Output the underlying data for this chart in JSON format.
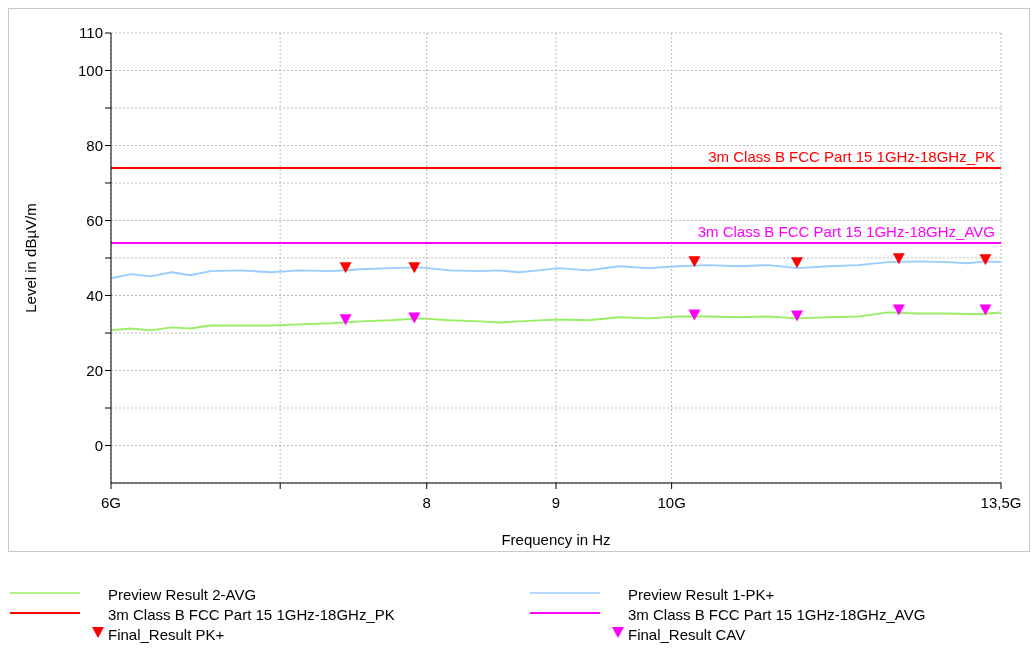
{
  "chart_data": {
    "type": "line",
    "xlabel": "Frequency in Hz",
    "ylabel": "Level in dBµV/m",
    "log": "x",
    "xlim": [
      6,
      13.5
    ],
    "xticks": [
      {
        "value": 6,
        "label": "6G"
      },
      {
        "value": 7,
        "label": null
      },
      8,
      9,
      {
        "value": 10,
        "label": "10G"
      },
      {
        "value": 13.5,
        "label": "13,5G"
      }
    ],
    "ylim": [
      -10,
      110
    ],
    "yticks": [
      0,
      {
        "value": 10,
        "label": null
      },
      20,
      {
        "value": 30,
        "label": null
      },
      40,
      {
        "value": 50,
        "label": null
      },
      60,
      {
        "value": 70,
        "label": null
      },
      80,
      {
        "value": 90,
        "label": null
      },
      100,
      110
    ],
    "grid": true,
    "legend": "bottom",
    "series": [
      {
        "name": "Preview Result 2-AVG",
        "color": "#99ee66",
        "x": [
          6.0,
          6.11,
          6.22,
          6.34,
          6.45,
          6.57,
          6.75,
          6.94,
          7.13,
          7.33,
          7.53,
          7.74,
          7.95,
          8.17,
          8.4,
          8.55,
          8.7,
          9.02,
          9.27,
          9.53,
          9.79,
          10.06,
          10.34,
          10.63,
          10.92,
          11.22,
          11.53,
          11.85,
          12.18,
          12.51,
          12.86,
          13.21,
          13.5
        ],
        "values": [
          30.7,
          31.2,
          30.7,
          31.5,
          31.2,
          32.0,
          32.0,
          32.0,
          32.3,
          32.6,
          33.1,
          33.4,
          33.9,
          33.4,
          33.1,
          32.8,
          33.1,
          33.6,
          33.4,
          34.2,
          33.9,
          34.4,
          34.4,
          34.2,
          34.4,
          33.9,
          34.2,
          34.4,
          35.5,
          35.2,
          35.2,
          35.0,
          35.5
        ]
      },
      {
        "name": "Preview Result 1-PK+",
        "color": "#99ccff",
        "x": [
          6.0,
          6.11,
          6.22,
          6.34,
          6.45,
          6.57,
          6.75,
          6.94,
          7.13,
          7.33,
          7.53,
          7.74,
          7.95,
          8.17,
          8.4,
          8.55,
          8.7,
          8.86,
          9.02,
          9.27,
          9.53,
          9.79,
          10.06,
          10.34,
          10.63,
          10.92,
          11.22,
          11.53,
          11.85,
          12.18,
          12.51,
          12.86,
          13.09,
          13.32,
          13.5
        ],
        "values": [
          44.6,
          45.7,
          45.1,
          46.2,
          45.4,
          46.5,
          46.7,
          46.2,
          46.7,
          46.5,
          47.0,
          47.3,
          47.5,
          46.7,
          46.5,
          46.7,
          46.2,
          46.7,
          47.3,
          46.7,
          47.8,
          47.3,
          47.8,
          48.1,
          47.8,
          48.1,
          47.3,
          47.8,
          48.1,
          48.9,
          49.1,
          48.9,
          48.6,
          49.1,
          48.9
        ]
      },
      {
        "name": "Final_Result PK+",
        "type": "scatter",
        "color": "#ff0000",
        "marker": "triangle",
        "x": [
          7.43,
          7.91,
          10.21,
          11.21,
          12.3,
          13.31
        ],
        "values": [
          47.3,
          47.3,
          48.9,
          48.6,
          49.7,
          49.4
        ]
      },
      {
        "name": "Final_Result CAV",
        "type": "scatter",
        "color": "#ff00ff",
        "marker": "triangle",
        "x": [
          7.43,
          7.91,
          10.21,
          11.21,
          12.3,
          13.31
        ],
        "values": [
          33.4,
          33.9,
          34.7,
          34.4,
          36.0,
          36.0
        ]
      }
    ],
    "ref_lines": [
      {
        "axis": "y",
        "value": 74,
        "label": "3m Class B FCC Part 15 1GHz-18GHz_PK",
        "color": "#ff0000"
      },
      {
        "axis": "y",
        "value": 54,
        "label": "3m Class B FCC Part 15 1GHz-18GHz_AVG",
        "color": "#ff00ff"
      }
    ]
  }
}
